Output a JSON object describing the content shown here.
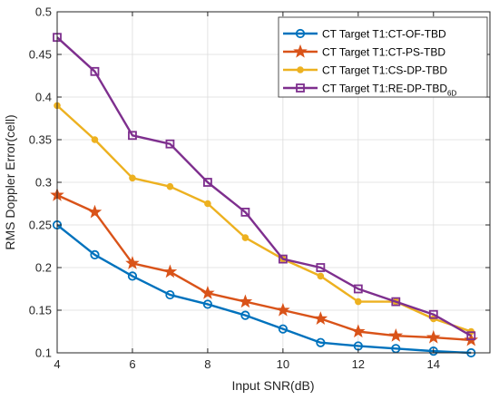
{
  "chart_data": {
    "type": "line",
    "xlabel": "Input SNR(dB)",
    "ylabel": "RMS Doppler Error(cell)",
    "xlim": [
      4,
      15.5
    ],
    "ylim": [
      0.1,
      0.5
    ],
    "xticks": [
      "4",
      "6",
      "8",
      "10",
      "12",
      "14"
    ],
    "yticks": [
      "0.1",
      "0.15",
      "0.2",
      "0.25",
      "0.3",
      "0.35",
      "0.4",
      "0.45",
      "0.5"
    ],
    "grid": true,
    "legend_position": "top-right",
    "x": [
      4,
      5,
      6,
      7,
      8,
      9,
      10,
      11,
      12,
      13,
      14,
      15
    ],
    "series": [
      {
        "name": "CT Target T1:CT-OF-TBD",
        "color": "#0072BD",
        "marker": "circle",
        "values": [
          0.25,
          0.215,
          0.19,
          0.168,
          0.157,
          0.144,
          0.128,
          0.112,
          0.108,
          0.105,
          0.102,
          0.1
        ]
      },
      {
        "name": "CT Target T1:CT-PS-TBD",
        "color": "#D95319",
        "marker": "star",
        "values": [
          0.285,
          0.265,
          0.205,
          0.195,
          0.17,
          0.16,
          0.15,
          0.14,
          0.125,
          0.12,
          0.118,
          0.115
        ]
      },
      {
        "name": "CT Target T1:CS-DP-TBD",
        "color": "#EDB120",
        "marker": "dot",
        "values": [
          0.39,
          0.35,
          0.305,
          0.295,
          0.275,
          0.235,
          0.21,
          0.19,
          0.16,
          0.16,
          0.14,
          0.125
        ]
      },
      {
        "name": "CT Target T1:RE-DP-TBD",
        "name_subscript": "6D",
        "color": "#7E2F8E",
        "marker": "square",
        "values": [
          0.47,
          0.43,
          0.355,
          0.345,
          0.3,
          0.265,
          0.21,
          0.2,
          0.175,
          0.16,
          0.145,
          0.12
        ]
      }
    ]
  }
}
